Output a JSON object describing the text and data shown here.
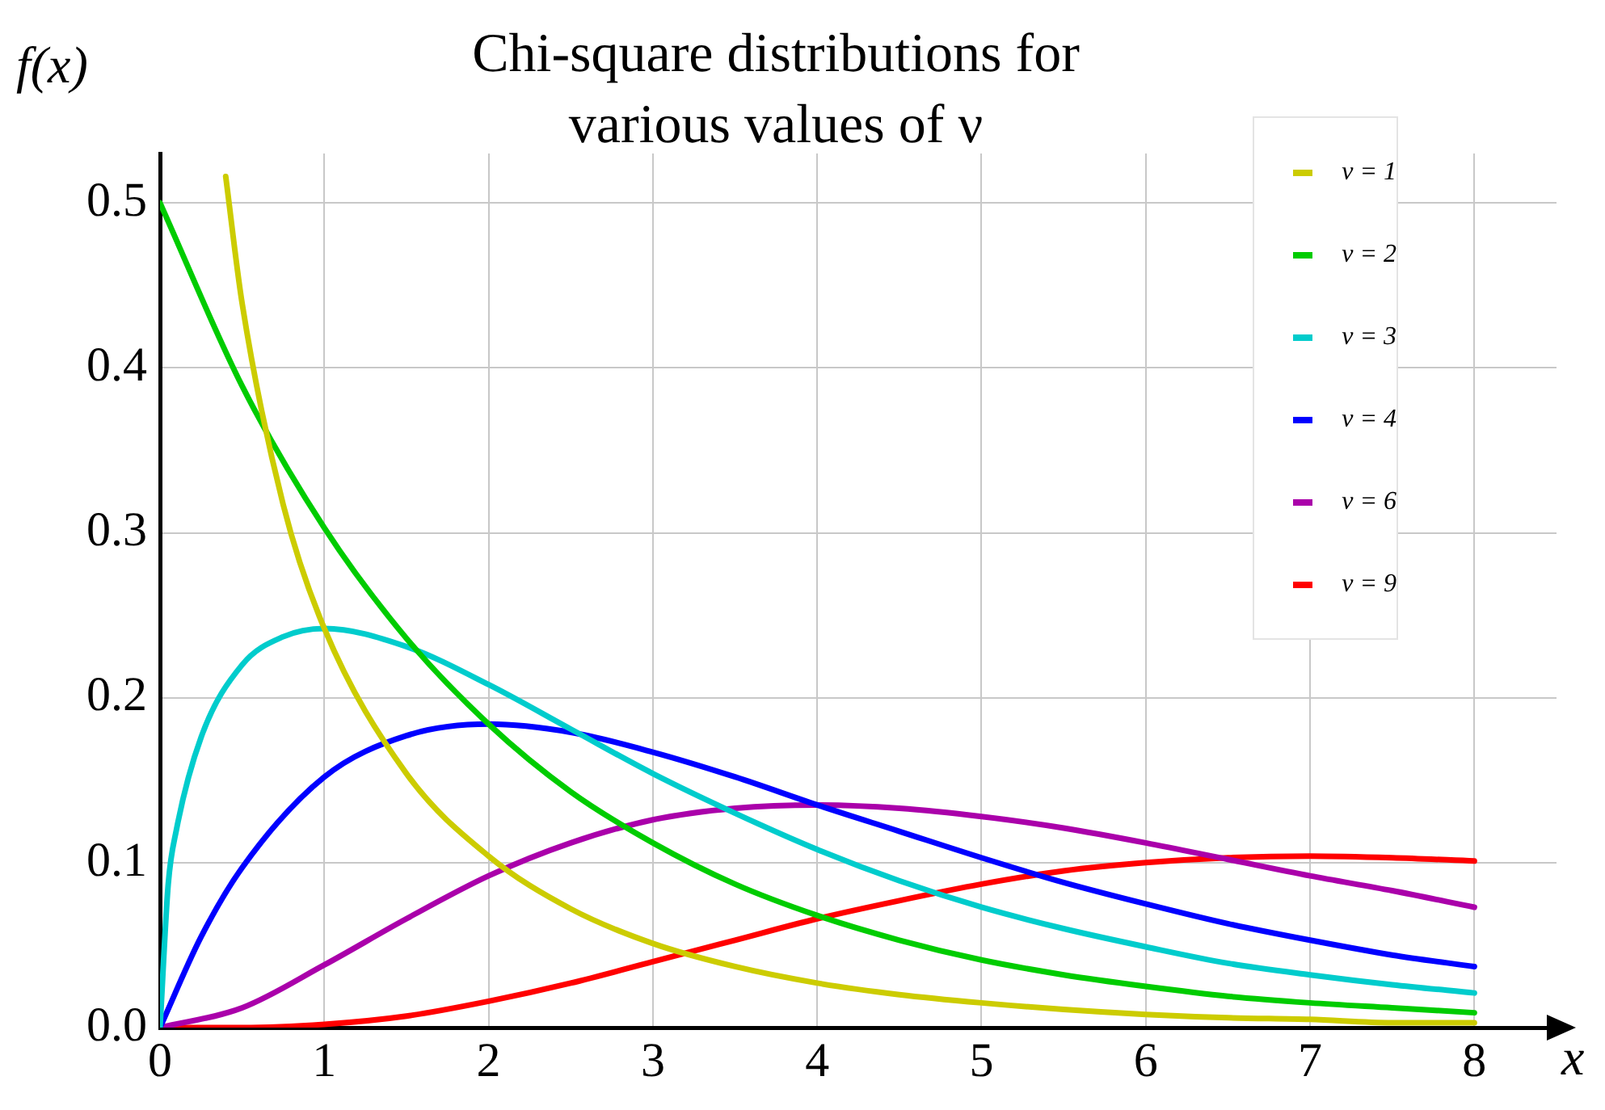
{
  "chart_data": {
    "type": "line",
    "title": "Chi-square distributions for various values of ν",
    "xlabel": "x",
    "ylabel": "f(x)",
    "xlim": [
      0,
      8.5
    ],
    "xticks": [
      0,
      1,
      2,
      3,
      4,
      5,
      6,
      7,
      8
    ],
    "ylim": [
      0,
      0.53
    ],
    "yticks": [
      {
        "value": 0,
        "label": "0.0"
      },
      0.1,
      0.2,
      0.3,
      0.4,
      0.5
    ],
    "grid": true,
    "legend": "top right",
    "marker": "none",
    "line_style": "solid",
    "series": [
      {
        "name": "ν = 1",
        "color": "#cccc00",
        "x": [
          0.4,
          0.5,
          0.75,
          1,
          1.5,
          2,
          2.5,
          3,
          3.5,
          4,
          4.5,
          5,
          5.5,
          6,
          6.5,
          7,
          7.5,
          8
        ],
        "values": [
          0.516,
          0.439,
          0.317,
          0.242,
          0.154,
          0.104,
          0.072,
          0.051,
          0.037,
          0.027,
          0.02,
          0.015,
          0.011,
          0.008,
          0.006,
          0.005,
          0.003,
          0.003
        ]
      },
      {
        "name": "ν = 2",
        "color": "#00cc00",
        "x": [
          0,
          0.5,
          1,
          1.5,
          2,
          2.5,
          3,
          3.5,
          4,
          4.5,
          5,
          5.5,
          6,
          6.5,
          7,
          7.5,
          8
        ],
        "values": [
          0.5,
          0.389,
          0.303,
          0.236,
          0.184,
          0.143,
          0.112,
          0.087,
          0.068,
          0.053,
          0.041,
          0.032,
          0.025,
          0.019,
          0.015,
          0.012,
          0.009
        ]
      },
      {
        "name": "ν = 3",
        "color": "#00cccc",
        "x": [
          0,
          0.05,
          0.1,
          0.25,
          0.5,
          0.75,
          1,
          1.5,
          2,
          2.5,
          3,
          3.5,
          4,
          4.5,
          5,
          5.5,
          6,
          6.5,
          7,
          7.5,
          8
        ],
        "values": [
          0,
          0.087,
          0.12,
          0.176,
          0.22,
          0.237,
          0.242,
          0.231,
          0.208,
          0.181,
          0.154,
          0.13,
          0.108,
          0.089,
          0.073,
          0.06,
          0.049,
          0.039,
          0.032,
          0.026,
          0.021
        ]
      },
      {
        "name": "ν = 4",
        "color": "#0000ff",
        "x": [
          0,
          0.25,
          0.5,
          1,
          1.5,
          2,
          2.5,
          3,
          3.5,
          4,
          4.5,
          5,
          5.5,
          6,
          6.5,
          7,
          7.5,
          8
        ],
        "values": [
          0,
          0.055,
          0.097,
          0.152,
          0.177,
          0.184,
          0.179,
          0.167,
          0.152,
          0.135,
          0.119,
          0.103,
          0.088,
          0.075,
          0.063,
          0.053,
          0.044,
          0.037
        ]
      },
      {
        "name": "ν = 6",
        "color": "#aa00aa",
        "x": [
          0,
          0.5,
          1,
          1.5,
          2,
          2.5,
          3,
          3.5,
          4,
          4.5,
          5,
          5.5,
          6,
          6.5,
          7,
          7.5,
          8
        ],
        "values": [
          0,
          0.012,
          0.038,
          0.066,
          0.092,
          0.112,
          0.126,
          0.133,
          0.135,
          0.133,
          0.128,
          0.121,
          0.112,
          0.102,
          0.092,
          0.083,
          0.073
        ]
      },
      {
        "name": "ν = 9",
        "color": "#ff0000",
        "x": [
          0,
          0.5,
          1,
          1.5,
          2,
          2.5,
          3,
          3.5,
          4,
          4.5,
          5,
          5.5,
          6,
          6.5,
          7,
          7.5,
          8
        ],
        "values": [
          0,
          0,
          0.002,
          0.007,
          0.016,
          0.027,
          0.04,
          0.053,
          0.066,
          0.077,
          0.087,
          0.095,
          0.1,
          0.103,
          0.104,
          0.103,
          0.101
        ]
      }
    ]
  }
}
